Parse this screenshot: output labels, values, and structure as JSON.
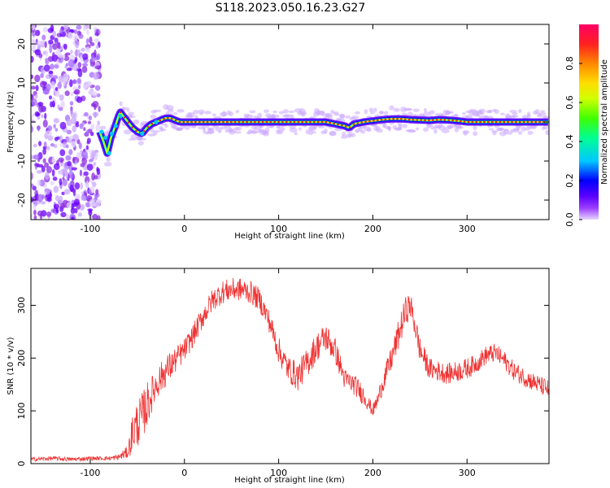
{
  "title": "S118.2023.050.16.23.G27",
  "colors": {
    "snr_line": "#ee3333",
    "background_scatter": "#8a2be2",
    "colormap": [
      "#e6d6ff",
      "#9b3cff",
      "#5a00ff",
      "#0000ff",
      "#00c8ff",
      "#00ff90",
      "#40ff00",
      "#d0ff00",
      "#ffdd00",
      "#ff8800",
      "#ff2020",
      "#ff0066"
    ]
  },
  "chart_data": [
    {
      "id": "spectrogram",
      "type": "heatmap",
      "xlabel": "Height of straight line (km)",
      "ylabel": "Frequency (Hz)",
      "xlim": [
        -163,
        387
      ],
      "ylim": [
        -25,
        25
      ],
      "x_ticks": [
        -100,
        0,
        100,
        200,
        300
      ],
      "y_ticks": [
        -20,
        -10,
        0,
        10,
        20
      ],
      "noise_region_x": [
        -163,
        -90
      ],
      "ridge": {
        "x": [
          -90,
          -86,
          -82,
          -78,
          -75,
          -72,
          -70,
          -68,
          -65,
          -60,
          -55,
          -50,
          -45,
          -40,
          -35,
          -30,
          -25,
          -20,
          -15,
          -10,
          -5,
          0,
          50,
          100,
          150,
          160,
          170,
          175,
          180,
          190,
          200,
          210,
          220,
          230,
          240,
          250,
          260,
          270,
          280,
          290,
          300,
          320,
          340,
          360,
          387
        ],
        "y": [
          -2.5,
          -5,
          -8,
          -4,
          -2,
          0,
          1.5,
          2.5,
          1.5,
          0,
          -1.5,
          -2.5,
          -3,
          -1.5,
          -0.5,
          0,
          0.5,
          1,
          1,
          0.5,
          0,
          0,
          0,
          0,
          0,
          -0.5,
          -1,
          -1.5,
          -0.5,
          0,
          0.3,
          0.6,
          0.8,
          0.8,
          0.6,
          0.5,
          0.4,
          0.6,
          0.5,
          0.3,
          0,
          0,
          0,
          0,
          0
        ]
      },
      "colorbar": {
        "label": "Normalized spectral amplitude",
        "range": [
          0,
          1
        ],
        "ticks": [
          0.0,
          0.2,
          0.4,
          0.6,
          0.8
        ],
        "tick_labels": [
          "0.0",
          "0.2",
          "0.4",
          "0.6",
          "0.8"
        ]
      }
    },
    {
      "id": "snr",
      "type": "line",
      "xlabel": "Height of straight line (km)",
      "ylabel": "SNR (10 * v/v)",
      "xlim": [
        -163,
        387
      ],
      "ylim": [
        0,
        370
      ],
      "x_ticks": [
        -100,
        0,
        100,
        200,
        300
      ],
      "y_ticks": [
        0,
        100,
        200,
        300
      ],
      "anchors": {
        "x": [
          -163,
          -140,
          -120,
          -100,
          -80,
          -70,
          -60,
          -55,
          -50,
          -45,
          -40,
          -35,
          -30,
          -20,
          -10,
          0,
          10,
          20,
          30,
          40,
          50,
          60,
          70,
          80,
          90,
          100,
          110,
          120,
          130,
          140,
          150,
          160,
          170,
          180,
          190,
          195,
          200,
          205,
          210,
          220,
          230,
          235,
          240,
          245,
          250,
          260,
          270,
          280,
          290,
          300,
          310,
          320,
          330,
          340,
          350,
          360,
          370,
          387
        ],
        "y": [
          8,
          10,
          8,
          10,
          10,
          12,
          22,
          60,
          75,
          90,
          110,
          130,
          150,
          175,
          195,
          215,
          245,
          280,
          310,
          325,
          330,
          330,
          325,
          310,
          270,
          215,
          180,
          165,
          190,
          220,
          240,
          215,
          160,
          150,
          130,
          115,
          100,
          120,
          150,
          200,
          260,
          290,
          300,
          260,
          215,
          180,
          175,
          170,
          175,
          180,
          190,
          205,
          210,
          195,
          175,
          165,
          155,
          140
        ]
      },
      "noise_amplitude": [
        4,
        4,
        4,
        4,
        4,
        6,
        12,
        40,
        45,
        45,
        45,
        35,
        30,
        30,
        25,
        22,
        22,
        22,
        22,
        22,
        22,
        22,
        22,
        22,
        22,
        25,
        25,
        28,
        28,
        28,
        28,
        25,
        20,
        20,
        20,
        15,
        12,
        15,
        20,
        25,
        30,
        28,
        25,
        25,
        25,
        20,
        20,
        20,
        20,
        20,
        18,
        18,
        18,
        18,
        18,
        18,
        18,
        18
      ]
    }
  ]
}
